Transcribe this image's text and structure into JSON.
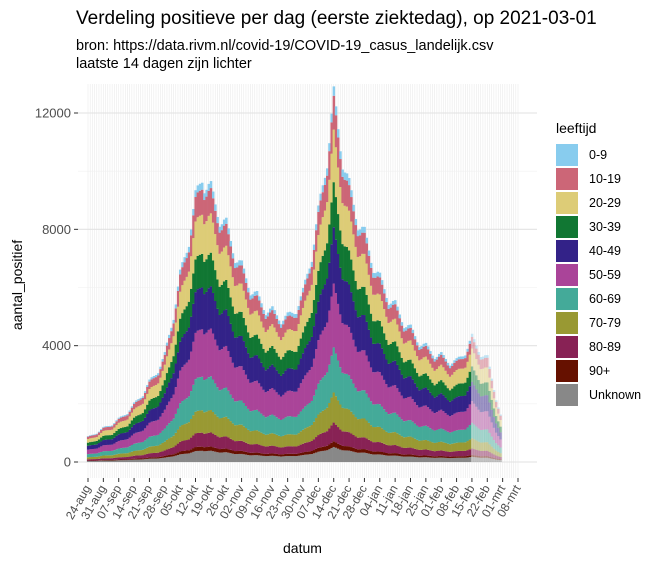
{
  "chart_data": {
    "type": "bar",
    "stacked": true,
    "title": "Verdeling positieve per dag (eerste ziektedag), op 2021-03-01",
    "subtitle_lines": [
      "bron: https://data.rivm.nl/covid-19/COVID-19_casus_landelijk.csv",
      "laatste 14 dagen zijn lichter"
    ],
    "xlabel": "datum",
    "ylabel": "aantal_positief",
    "ylim": [
      0,
      12800
    ],
    "yticks": [
      0,
      4000,
      8000,
      12000
    ],
    "ytick_labels": [
      "0",
      "4000",
      "8000",
      "12000"
    ],
    "xticks": [
      "24-aug",
      "31-aug",
      "07-sep",
      "14-sep",
      "21-sep",
      "28-sep",
      "05-okt",
      "12-okt",
      "19-okt",
      "26-okt",
      "02-nov",
      "09-nov",
      "16-nov",
      "23-nov",
      "30-nov",
      "07-dec",
      "14-dec",
      "21-dec",
      "28-dec",
      "04-jan",
      "11-jan",
      "18-jan",
      "25-jan",
      "01-feb",
      "08-feb",
      "15-feb",
      "22-feb",
      "01-mrt",
      "08-mrt"
    ],
    "grid": true,
    "legend_position": "right",
    "legend_title": "leeftijd",
    "series": [
      {
        "name": "0-9",
        "color": "#88ccee"
      },
      {
        "name": "10-19",
        "color": "#cc6677"
      },
      {
        "name": "20-29",
        "color": "#ddcc77"
      },
      {
        "name": "30-39",
        "color": "#117733"
      },
      {
        "name": "40-49",
        "color": "#332288"
      },
      {
        "name": "50-59",
        "color": "#aa4499"
      },
      {
        "name": "60-69",
        "color": "#44aa99"
      },
      {
        "name": "70-79",
        "color": "#999933"
      },
      {
        "name": "80-89",
        "color": "#882255"
      },
      {
        "name": "90+",
        "color": "#661100"
      },
      {
        "name": "Unknown",
        "color": "#888888"
      }
    ],
    "totals_key_points": [
      {
        "date": "2020-08-24",
        "total": 850
      },
      {
        "date": "2020-08-31",
        "total": 1150
      },
      {
        "date": "2020-09-07",
        "total": 1450
      },
      {
        "date": "2020-09-14",
        "total": 1950
      },
      {
        "date": "2020-09-21",
        "total": 2700
      },
      {
        "date": "2020-09-28",
        "total": 3600
      },
      {
        "date": "2020-10-05",
        "total": 6300
      },
      {
        "date": "2020-10-12",
        "total": 8900
      },
      {
        "date": "2020-10-15",
        "total": 9900
      },
      {
        "date": "2020-10-19",
        "total": 9200
      },
      {
        "date": "2020-10-26",
        "total": 8000
      },
      {
        "date": "2020-11-02",
        "total": 6600
      },
      {
        "date": "2020-11-09",
        "total": 5600
      },
      {
        "date": "2020-11-16",
        "total": 5100
      },
      {
        "date": "2020-11-23",
        "total": 4900
      },
      {
        "date": "2020-11-30",
        "total": 5700
      },
      {
        "date": "2020-12-07",
        "total": 8400
      },
      {
        "date": "2020-12-14",
        "total": 12300
      },
      {
        "date": "2020-12-21",
        "total": 9300
      },
      {
        "date": "2020-12-28",
        "total": 7700
      },
      {
        "date": "2021-01-04",
        "total": 6200
      },
      {
        "date": "2021-01-11",
        "total": 5300
      },
      {
        "date": "2021-01-18",
        "total": 4500
      },
      {
        "date": "2021-01-25",
        "total": 3900
      },
      {
        "date": "2021-02-01",
        "total": 3600
      },
      {
        "date": "2021-02-08",
        "total": 3400
      },
      {
        "date": "2021-02-15",
        "total": 4200
      },
      {
        "date": "2021-02-22",
        "total": 3500
      },
      {
        "date": "2021-02-28",
        "total": 1600
      }
    ],
    "lighter_from": "2021-02-15"
  }
}
